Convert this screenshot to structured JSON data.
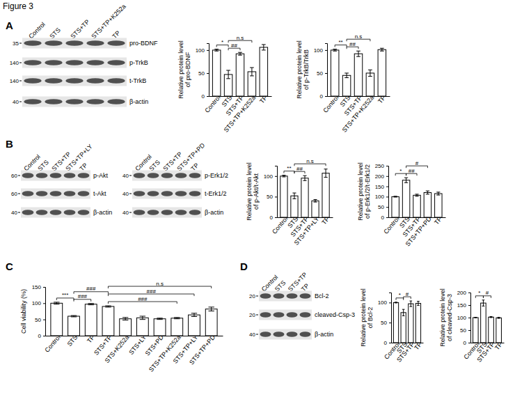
{
  "title": "Figure 3",
  "panels": [
    {
      "label": "A",
      "blots": [
        {
          "lanes": [
            "Control",
            "STS",
            "STS+TP",
            "STS+TP+K252a",
            "TP"
          ],
          "rows": [
            {
              "name": "pro-BDNF",
              "mw": "35"
            },
            {
              "name": "p-TrkB",
              "mw": "140"
            },
            {
              "name": "t-TrkB",
              "mw": "140"
            },
            {
              "name": "β-actin",
              "mw": "40"
            }
          ]
        }
      ]
    },
    {
      "label": "B",
      "blots": [
        {
          "lanes": [
            "Control",
            "STS",
            "STS+TP",
            "STS+TP+LY",
            "TP"
          ],
          "rows": [
            {
              "name": "p-Akt",
              "mw": "60"
            },
            {
              "name": "t-Akt",
              "mw": "60"
            },
            {
              "name": "β-actin",
              "mw": "40"
            }
          ]
        },
        {
          "lanes": [
            "Control",
            "STS",
            "STS+TP",
            "STS+TP+PD",
            "TP"
          ],
          "rows": [
            {
              "name": "p-Erk1/2",
              "mw": "40"
            },
            {
              "name": "t-Erk1/2",
              "mw": "40"
            },
            {
              "name": "β-actin",
              "mw": "40"
            }
          ]
        }
      ]
    },
    {
      "label": "C",
      "blots": []
    },
    {
      "label": "D",
      "blots": [
        {
          "lanes": [
            "Control",
            "STS",
            "STS+TP",
            "TP"
          ],
          "rows": [
            {
              "name": "Bcl-2",
              "mw": "20"
            },
            {
              "name": "cleaved-Csp-3",
              "mw": "20"
            },
            {
              "name": "β-actin",
              "mw": "40"
            }
          ]
        }
      ]
    }
  ],
  "chart_data": [
    {
      "type": "bar",
      "y_label": "Relative protein level of pro-BDNF",
      "color": "#ffffff",
      "categories": [
        "Control",
        "STS",
        "STS+TP",
        "STS+TP+K252a",
        "TP"
      ],
      "values": [
        100,
        47,
        92,
        53,
        106
      ],
      "errors": [
        2,
        9,
        3,
        9,
        6
      ],
      "ylim": [
        0,
        115
      ],
      "yticks": [
        0,
        50,
        100
      ],
      "significance": [
        {
          "from": "Control",
          "to": "STS",
          "label": "*"
        },
        {
          "from": "STS",
          "to": "STS+TP",
          "label": "##"
        },
        {
          "from": "STS",
          "to": "STS+TP+K252a",
          "label": "n.s"
        }
      ]
    },
    {
      "type": "bar",
      "y_label": "Relative protein level of p-TrkB/TrkB",
      "color": "#ffffff",
      "categories": [
        "Control",
        "STS",
        "STS+TP",
        "STS+TP+K252a",
        "TP"
      ],
      "values": [
        100,
        45,
        92,
        50,
        101
      ],
      "errors": [
        2,
        5,
        6,
        7,
        3
      ],
      "ylim": [
        0,
        115
      ],
      "yticks": [
        0,
        50,
        100
      ],
      "significance": [
        {
          "from": "Control",
          "to": "STS",
          "label": "**"
        },
        {
          "from": "STS",
          "to": "STS+TP",
          "label": "##"
        },
        {
          "from": "STS",
          "to": "STS+TP+K252a",
          "label": "n.s"
        }
      ]
    },
    {
      "type": "bar",
      "y_label": "Relative protein level of p-Akt/t-Akt",
      "color": "#ffffff",
      "categories": [
        "Control",
        "STS",
        "STS+TP",
        "STS+TP+LY",
        "TP"
      ],
      "values": [
        100,
        52,
        95,
        40,
        107
      ],
      "errors": [
        2,
        7,
        6,
        3,
        10
      ],
      "ylim": [
        0,
        125
      ],
      "yticks": [
        0,
        50,
        100
      ],
      "significance": [
        {
          "from": "Control",
          "to": "STS",
          "label": "**"
        },
        {
          "from": "STS",
          "to": "STS+TP",
          "label": "##"
        },
        {
          "from": "STS",
          "to": "TP",
          "label": "n.s"
        }
      ]
    },
    {
      "type": "bar",
      "y_label": "Relative protein level of p-Erk1/2/t-Erk1/2",
      "color": "#ffffff",
      "categories": [
        "Control",
        "STS",
        "STS+TP",
        "STS+TP+PD",
        "TP"
      ],
      "values": [
        100,
        180,
        107,
        120,
        115
      ],
      "errors": [
        2,
        12,
        5,
        8,
        7
      ],
      "ylim": [
        0,
        250
      ],
      "yticks": [
        0,
        50,
        100,
        150,
        200,
        250
      ],
      "significance": [
        {
          "from": "Control",
          "to": "STS",
          "label": "*"
        },
        {
          "from": "STS",
          "to": "STS+TP",
          "label": "##"
        },
        {
          "from": "STS",
          "to": "STS+TP+PD",
          "label": "#"
        }
      ]
    },
    {
      "type": "bar",
      "y_label": "Cell viability (%)",
      "color": "#ffffff",
      "categories": [
        "Control",
        "STS",
        "TP",
        "STS+TP",
        "STS+K252a",
        "STS+LY",
        "STS+PD",
        "STS+TP+K252a",
        "STS+TP+LY",
        "STS+TP+PD"
      ],
      "values": [
        100,
        60,
        97,
        90,
        52,
        55,
        52,
        54,
        64,
        82
      ],
      "errors": [
        3,
        2,
        2,
        2,
        4,
        5,
        2,
        2,
        5,
        6
      ],
      "ylim": [
        0,
        150
      ],
      "yticks": [
        0,
        50,
        100,
        150
      ],
      "significance": [
        {
          "from": "Control",
          "to": "STS",
          "label": "***"
        },
        {
          "from": "STS",
          "to": "TP",
          "label": "###"
        },
        {
          "from": "STS",
          "to": "STS+TP",
          "label": "###"
        },
        {
          "from": "STS+TP",
          "to": "STS+TP+K252a",
          "label": "###"
        },
        {
          "from": "STS+TP",
          "to": "STS+TP+LY",
          "label": "###"
        },
        {
          "from": "STS+TP",
          "to": "STS+TP+PD",
          "label": "n.s"
        }
      ]
    },
    {
      "type": "bar",
      "y_label": "Relative protein level of Bcl-2",
      "color": "#ffffff",
      "categories": [
        "Control",
        "STS",
        "STS+TP",
        "TP"
      ],
      "values": [
        100,
        75,
        97,
        98
      ],
      "errors": [
        1,
        8,
        7,
        5
      ],
      "ylim": [
        0,
        125
      ],
      "yticks": [
        0,
        50,
        100
      ],
      "significance": [
        {
          "from": "Control",
          "to": "STS",
          "label": "*"
        },
        {
          "from": "STS",
          "to": "STS+TP",
          "label": "#"
        }
      ]
    },
    {
      "type": "bar",
      "y_label": "Relative protein level of cleaved-Csp-3",
      "color": "#ffffff",
      "categories": [
        "Control",
        "STS",
        "STS+TP",
        "TP"
      ],
      "values": [
        100,
        158,
        102,
        99
      ],
      "errors": [
        1,
        12,
        2,
        2
      ],
      "ylim": [
        0,
        200
      ],
      "yticks": [
        0,
        50,
        100,
        150,
        200
      ],
      "significance": [
        {
          "from": "Control",
          "to": "STS",
          "label": "*"
        },
        {
          "from": "STS",
          "to": "STS+TP",
          "label": "#"
        }
      ]
    }
  ]
}
